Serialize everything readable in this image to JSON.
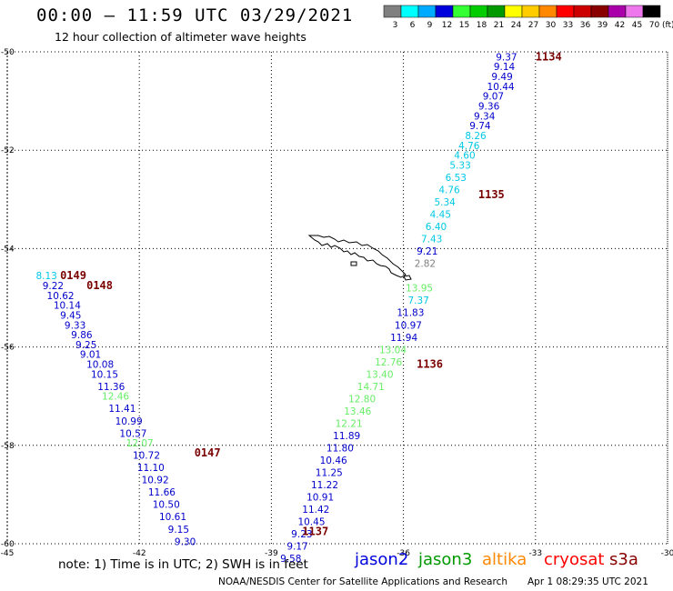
{
  "header": {
    "title": "00:00 – 11:59 UTC 03/29/2021",
    "subtitle": "12 hour collection of altimeter wave heights"
  },
  "legend": {
    "unit": "(ft)",
    "bins": [
      {
        "label": "3",
        "color": "#808080"
      },
      {
        "label": "6",
        "color": "#00ffff"
      },
      {
        "label": "9",
        "color": "#00aaff"
      },
      {
        "label": "12",
        "color": "#0000dd"
      },
      {
        "label": "15",
        "color": "#33ff33"
      },
      {
        "label": "18",
        "color": "#00cc00"
      },
      {
        "label": "21",
        "color": "#009900"
      },
      {
        "label": "24",
        "color": "#ffff00"
      },
      {
        "label": "27",
        "color": "#ffcc00"
      },
      {
        "label": "30",
        "color": "#ff8800"
      },
      {
        "label": "33",
        "color": "#ff0000"
      },
      {
        "label": "36",
        "color": "#cc0000"
      },
      {
        "label": "39",
        "color": "#880000"
      },
      {
        "label": "42",
        "color": "#aa00aa"
      },
      {
        "label": "45",
        "color": "#ee77ee"
      },
      {
        "label": "70",
        "color": "#000000"
      }
    ]
  },
  "axes": {
    "x_ticks": [
      "-45",
      "-42",
      "-39",
      "-36",
      "-33",
      "-30"
    ],
    "y_ticks": [
      "-50",
      "-52",
      "-54",
      "-56",
      "-58",
      "-60"
    ],
    "lon_range": [
      -45,
      -30
    ],
    "lat_range": [
      -60,
      -50
    ]
  },
  "colors": {
    "dark_blue": "#0000cc",
    "cyan": "#00c8e6",
    "light_green": "#66ee66",
    "gray": "#808080",
    "track_label": "#7a0000"
  },
  "tracks": [
    {
      "label": "1134",
      "lon": -33.0,
      "lat": -50.1
    },
    {
      "label": "1135",
      "lon": -34.3,
      "lat": -52.9
    },
    {
      "label": "1136",
      "lon": -35.7,
      "lat": -56.35
    },
    {
      "label": "1137",
      "lon": -38.3,
      "lat": -59.75
    },
    {
      "label": "0149",
      "lon": -43.8,
      "lat": -54.55
    },
    {
      "label": "0148",
      "lon": -43.2,
      "lat": -54.75
    },
    {
      "label": "0147",
      "lon": -40.75,
      "lat": -58.15
    }
  ],
  "wave_heights_east": [
    {
      "v": "9.37",
      "lon": -33.9,
      "lat": -50.1,
      "c": "dark_blue"
    },
    {
      "v": "9.14",
      "lon": -33.95,
      "lat": -50.3,
      "c": "dark_blue"
    },
    {
      "v": "9.49",
      "lon": -34.0,
      "lat": -50.5,
      "c": "dark_blue"
    },
    {
      "v": "10.44",
      "lon": -34.1,
      "lat": -50.7,
      "c": "dark_blue"
    },
    {
      "v": "9.07",
      "lon": -34.2,
      "lat": -50.9,
      "c": "dark_blue"
    },
    {
      "v": "9.36",
      "lon": -34.3,
      "lat": -51.1,
      "c": "dark_blue"
    },
    {
      "v": "9.34",
      "lon": -34.4,
      "lat": -51.3,
      "c": "dark_blue"
    },
    {
      "v": "9.74",
      "lon": -34.5,
      "lat": -51.5,
      "c": "dark_blue"
    },
    {
      "v": "8.26",
      "lon": -34.6,
      "lat": -51.7,
      "c": "cyan"
    },
    {
      "v": "4.76",
      "lon": -34.75,
      "lat": -51.9,
      "c": "cyan"
    },
    {
      "v": "4.60",
      "lon": -34.85,
      "lat": -52.1,
      "c": "cyan"
    },
    {
      "v": "5.33",
      "lon": -34.95,
      "lat": -52.3,
      "c": "cyan"
    },
    {
      "v": "6.53",
      "lon": -35.05,
      "lat": -52.55,
      "c": "cyan"
    },
    {
      "v": "4.76",
      "lon": -35.2,
      "lat": -52.8,
      "c": "cyan"
    },
    {
      "v": "5.34",
      "lon": -35.3,
      "lat": -53.05,
      "c": "cyan"
    },
    {
      "v": "4.45",
      "lon": -35.4,
      "lat": -53.3,
      "c": "cyan"
    },
    {
      "v": "6.40",
      "lon": -35.5,
      "lat": -53.55,
      "c": "cyan"
    },
    {
      "v": "7.43",
      "lon": -35.6,
      "lat": -53.8,
      "c": "cyan"
    },
    {
      "v": "9.21",
      "lon": -35.7,
      "lat": -54.05,
      "c": "dark_blue"
    },
    {
      "v": "2.82",
      "lon": -35.75,
      "lat": -54.3,
      "c": "gray"
    },
    {
      "v": "13.95",
      "lon": -35.95,
      "lat": -54.8,
      "c": "light_green"
    },
    {
      "v": "7.37",
      "lon": -35.9,
      "lat": -55.05,
      "c": "cyan"
    },
    {
      "v": "11.83",
      "lon": -36.15,
      "lat": -55.3,
      "c": "dark_blue"
    },
    {
      "v": "10.97",
      "lon": -36.2,
      "lat": -55.55,
      "c": "dark_blue"
    },
    {
      "v": "11.94",
      "lon": -36.3,
      "lat": -55.8,
      "c": "dark_blue"
    },
    {
      "v": "13.04",
      "lon": -36.55,
      "lat": -56.05,
      "c": "light_green"
    },
    {
      "v": "12.76",
      "lon": -36.65,
      "lat": -56.3,
      "c": "light_green"
    },
    {
      "v": "13.40",
      "lon": -36.85,
      "lat": -56.55,
      "c": "light_green"
    },
    {
      "v": "14.71",
      "lon": -37.05,
      "lat": -56.8,
      "c": "light_green"
    },
    {
      "v": "12.80",
      "lon": -37.25,
      "lat": -57.05,
      "c": "light_green"
    },
    {
      "v": "13.46",
      "lon": -37.35,
      "lat": -57.3,
      "c": "light_green"
    },
    {
      "v": "12.21",
      "lon": -37.55,
      "lat": -57.55,
      "c": "light_green"
    },
    {
      "v": "11.89",
      "lon": -37.6,
      "lat": -57.8,
      "c": "dark_blue"
    },
    {
      "v": "11.80",
      "lon": -37.75,
      "lat": -58.05,
      "c": "dark_blue"
    },
    {
      "v": "10.46",
      "lon": -37.9,
      "lat": -58.3,
      "c": "dark_blue"
    },
    {
      "v": "11.25",
      "lon": -38.0,
      "lat": -58.55,
      "c": "dark_blue"
    },
    {
      "v": "11.22",
      "lon": -38.1,
      "lat": -58.8,
      "c": "dark_blue"
    },
    {
      "v": "10.91",
      "lon": -38.2,
      "lat": -59.05,
      "c": "dark_blue"
    },
    {
      "v": "11.42",
      "lon": -38.3,
      "lat": -59.3,
      "c": "dark_blue"
    },
    {
      "v": "10.45",
      "lon": -38.4,
      "lat": -59.55,
      "c": "dark_blue"
    },
    {
      "v": "9.23",
      "lon": -38.55,
      "lat": -59.8,
      "c": "dark_blue"
    },
    {
      "v": "9.17",
      "lon": -38.65,
      "lat": -60.05,
      "c": "dark_blue"
    },
    {
      "v": "9.58",
      "lon": -38.8,
      "lat": -60.3,
      "c": "dark_blue"
    }
  ],
  "wave_heights_west": [
    {
      "v": "8.13",
      "lon": -44.35,
      "lat": -54.55,
      "c": "cyan"
    },
    {
      "v": "9.22",
      "lon": -44.2,
      "lat": -54.75,
      "c": "dark_blue"
    },
    {
      "v": "10.62",
      "lon": -44.1,
      "lat": -54.95,
      "c": "dark_blue"
    },
    {
      "v": "10.14",
      "lon": -43.95,
      "lat": -55.15,
      "c": "dark_blue"
    },
    {
      "v": "9.45",
      "lon": -43.8,
      "lat": -55.35,
      "c": "dark_blue"
    },
    {
      "v": "9.33",
      "lon": -43.7,
      "lat": -55.55,
      "c": "dark_blue"
    },
    {
      "v": "9.86",
      "lon": -43.55,
      "lat": -55.75,
      "c": "dark_blue"
    },
    {
      "v": "9.25",
      "lon": -43.45,
      "lat": -55.95,
      "c": "dark_blue"
    },
    {
      "v": "9.01",
      "lon": -43.35,
      "lat": -56.15,
      "c": "dark_blue"
    },
    {
      "v": "10.08",
      "lon": -43.2,
      "lat": -56.35,
      "c": "dark_blue"
    },
    {
      "v": "10.15",
      "lon": -43.1,
      "lat": -56.55,
      "c": "dark_blue"
    },
    {
      "v": "11.36",
      "lon": -42.95,
      "lat": -56.8,
      "c": "dark_blue"
    },
    {
      "v": "12.46",
      "lon": -42.85,
      "lat": -57.0,
      "c": "light_green"
    },
    {
      "v": "11.41",
      "lon": -42.7,
      "lat": -57.25,
      "c": "dark_blue"
    },
    {
      "v": "10.99",
      "lon": -42.55,
      "lat": -57.5,
      "c": "dark_blue"
    },
    {
      "v": "10.57",
      "lon": -42.45,
      "lat": -57.75,
      "c": "dark_blue"
    },
    {
      "v": "12.07",
      "lon": -42.3,
      "lat": -57.95,
      "c": "light_green"
    },
    {
      "v": "10.72",
      "lon": -42.15,
      "lat": -58.2,
      "c": "dark_blue"
    },
    {
      "v": "11.10",
      "lon": -42.05,
      "lat": -58.45,
      "c": "dark_blue"
    },
    {
      "v": "10.92",
      "lon": -41.95,
      "lat": -58.7,
      "c": "dark_blue"
    },
    {
      "v": "11.66",
      "lon": -41.8,
      "lat": -58.95,
      "c": "dark_blue"
    },
    {
      "v": "10.50",
      "lon": -41.7,
      "lat": -59.2,
      "c": "dark_blue"
    },
    {
      "v": "10.61",
      "lon": -41.55,
      "lat": -59.45,
      "c": "dark_blue"
    },
    {
      "v": "9.15",
      "lon": -41.35,
      "lat": -59.7,
      "c": "dark_blue"
    },
    {
      "v": "9.30",
      "lon": -41.2,
      "lat": -59.95,
      "c": "dark_blue"
    }
  ],
  "note": "note:  1) Time is in UTC;  2) SWH is in feet",
  "satellites": [
    {
      "name": "jason2",
      "color": "#0000dd"
    },
    {
      "name": "jason3",
      "color": "#009900"
    },
    {
      "name": "altika",
      "color": "#ff8800"
    },
    {
      "name": "cryosat",
      "color": "#ff0000"
    },
    {
      "name": "s3a",
      "color": "#880000"
    }
  ],
  "footer": {
    "center": "NOAA/NESDIS Center for Satellite Applications and Research",
    "timestamp": "Apr  1 08:29:35 UTC 2021"
  }
}
